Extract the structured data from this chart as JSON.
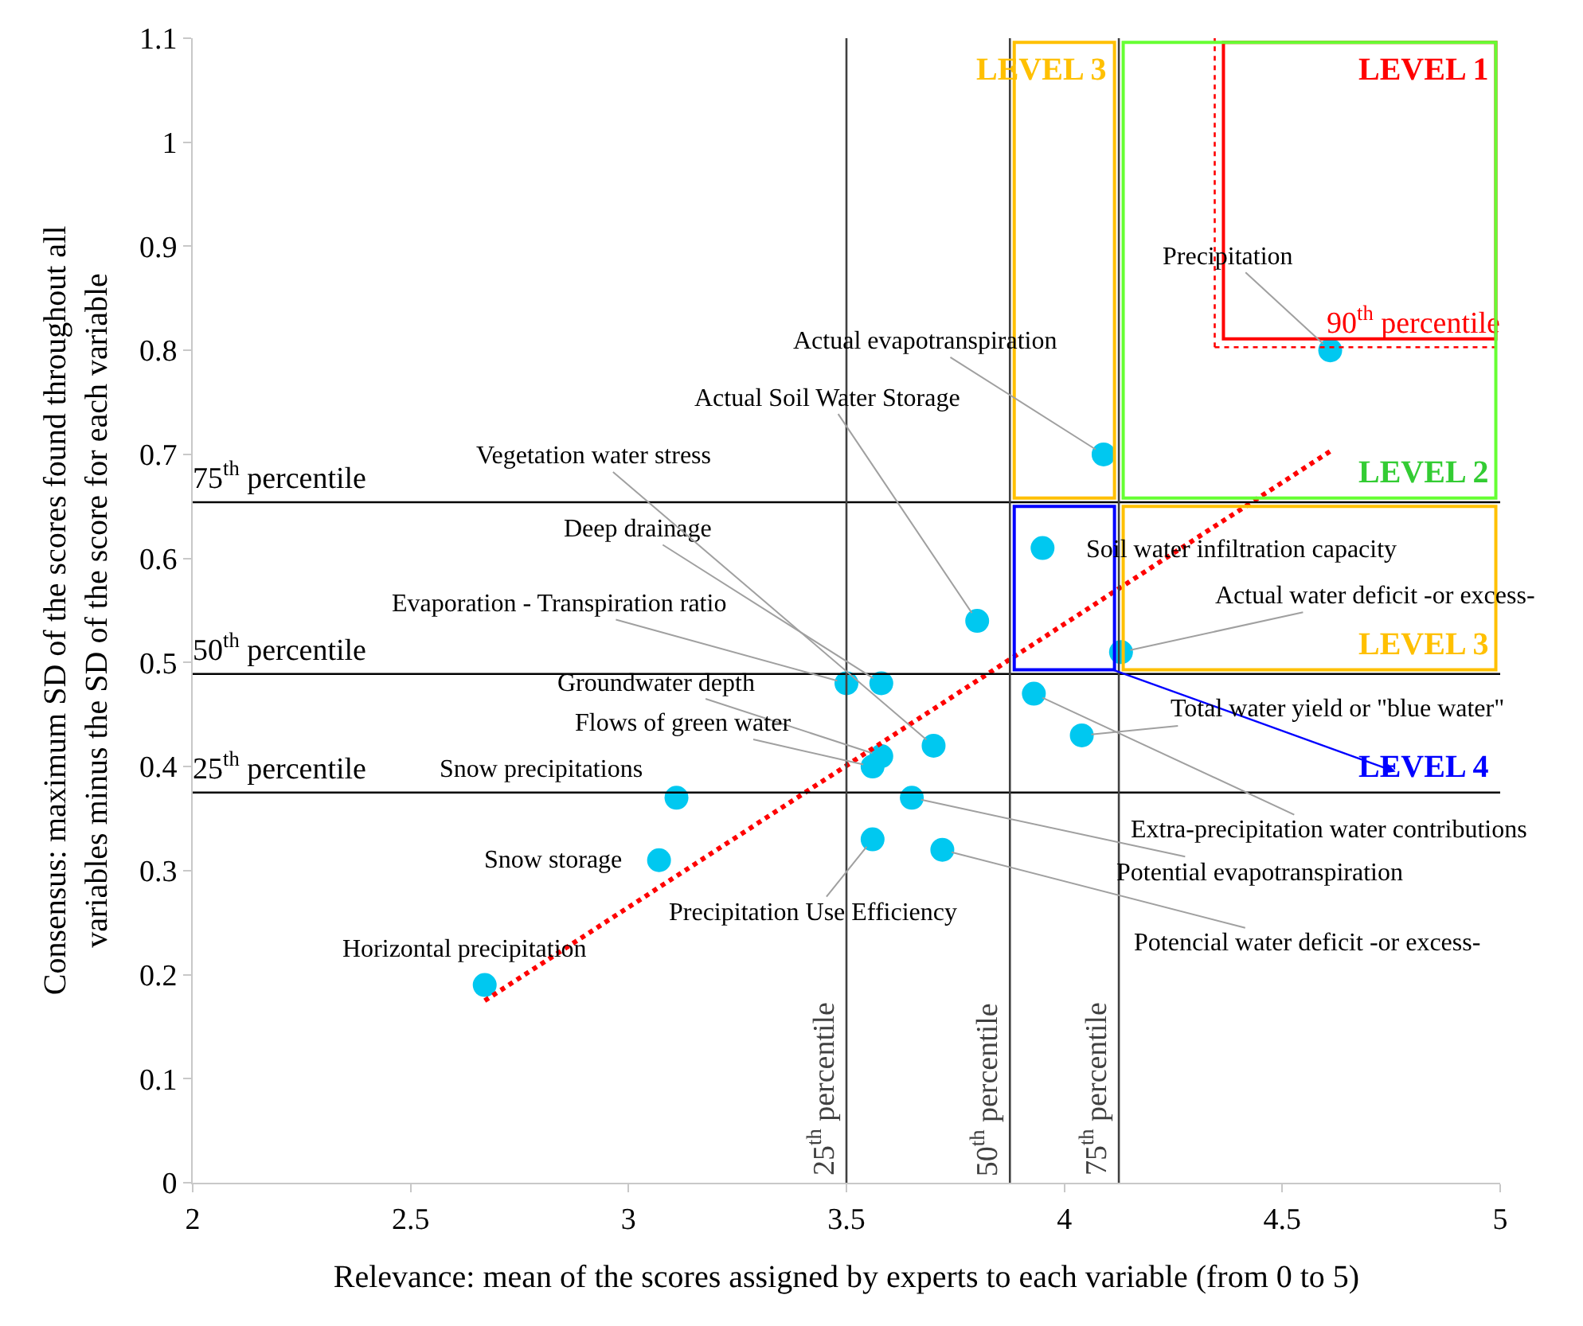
{
  "chart_data": {
    "type": "scatter",
    "xlabel": "Relevance: mean of the scores assigned by experts to each variable (from 0 to 5)",
    "ylabel": "Consensus: maximum SD of the scores found throughout all\nvariables minus the SD of the score for each variable",
    "xlim": [
      2,
      5
    ],
    "xticks": [
      2,
      2.5,
      3,
      3.5,
      4,
      4.5,
      5
    ],
    "ylim": [
      0,
      1.1
    ],
    "yticks": [
      0,
      0.1,
      0.2,
      0.3,
      0.4,
      0.5,
      0.6,
      0.7,
      0.8,
      0.9,
      1,
      1.1
    ],
    "grid": false,
    "legend": false,
    "series": [
      {
        "marker": "circle",
        "color": "#00c8f0",
        "x": [
          2.67,
          3.07,
          3.11,
          3.5,
          3.58,
          3.7,
          3.58,
          3.56,
          3.65,
          3.56,
          3.72,
          3.93,
          4.04,
          4.13,
          3.95,
          3.8,
          4.09,
          4.61
        ],
        "values": [
          0.19,
          0.31,
          0.37,
          0.48,
          0.48,
          0.42,
          0.41,
          0.4,
          0.37,
          0.33,
          0.32,
          0.47,
          0.43,
          0.51,
          0.61,
          0.54,
          0.7,
          0.8
        ]
      },
      {
        "type": "line",
        "color": "#ff0000",
        "line_style": "dotted",
        "x": [
          2.67,
          4.61
        ],
        "values": [
          0.175,
          0.703
        ]
      }
    ],
    "ref_lines": [
      {
        "axis": "y",
        "value": 0.375,
        "label": "25$^{th}$ percentile",
        "color": "#000000"
      },
      {
        "axis": "y",
        "value": 0.489,
        "label": "50$^{th}$ percentile",
        "color": "#000000"
      },
      {
        "axis": "y",
        "value": 0.654,
        "label": "75$^{th}$ percentile",
        "color": "#000000"
      },
      {
        "axis": "x",
        "value": 3.5,
        "label": "25$^{th}$ percentile",
        "color": "#404040"
      },
      {
        "axis": "x",
        "value": 3.875,
        "label": "50$^{th}$ percentile",
        "color": "#404040"
      },
      {
        "axis": "x",
        "value": 4.125,
        "label": "75$^{th}$ percentile",
        "color": "#404040"
      },
      {
        "axis": "y",
        "value": 0.803,
        "label": "90$^{th}$ percentile",
        "color": "#ff0000",
        "line_style": "dotted"
      },
      {
        "axis": "x",
        "value": 4.345,
        "color": "#ff0000",
        "line_style": "dotted"
      }
    ],
    "annotations": [
      "LEVEL 1",
      "LEVEL 2",
      "LEVEL 3",
      "LEVEL 3",
      "LEVEL 4",
      {
        "text": "Horizontal precipitation",
        "x": 2.67,
        "y": 0.19
      },
      {
        "text": "Snow storage",
        "x": 3.07,
        "y": 0.31
      },
      {
        "text": "Snow precipitations",
        "x": 3.11,
        "y": 0.37
      },
      {
        "text": "Evaporation - Transpiration ratio",
        "x": 3.5,
        "y": 0.48
      },
      {
        "text": "Deep drainage",
        "x": 3.58,
        "y": 0.48
      },
      {
        "text": "Vegetation water stress",
        "x": 3.7,
        "y": 0.42
      },
      {
        "text": "Groundwater depth",
        "x": 3.58,
        "y": 0.41
      },
      {
        "text": "Flows of green water",
        "x": 3.56,
        "y": 0.4
      },
      {
        "text": "Potential evapotranspiration",
        "x": 3.65,
        "y": 0.37
      },
      {
        "text": "Precipitation Use Efficiency",
        "x": 3.56,
        "y": 0.33
      },
      {
        "text": "Potencial water deficit -or excess-",
        "x": 3.72,
        "y": 0.32
      },
      {
        "text": "Extra-precipitation water contributions",
        "x": 3.93,
        "y": 0.47
      },
      {
        "text": "Total water yield or \"blue water\"",
        "x": 4.04,
        "y": 0.43
      },
      {
        "text": "Actual water deficit -or excess-",
        "x": 4.13,
        "y": 0.51
      },
      {
        "text": "Soil water infiltration capacity",
        "x": 3.95,
        "y": 0.61
      },
      {
        "text": "Actual Soil Water Storage",
        "x": 3.8,
        "y": 0.54
      },
      {
        "text": "Actual evapotranspiration",
        "x": 4.09,
        "y": 0.7
      },
      {
        "text": "Precipitation",
        "x": 4.61,
        "y": 0.8
      }
    ]
  }
}
